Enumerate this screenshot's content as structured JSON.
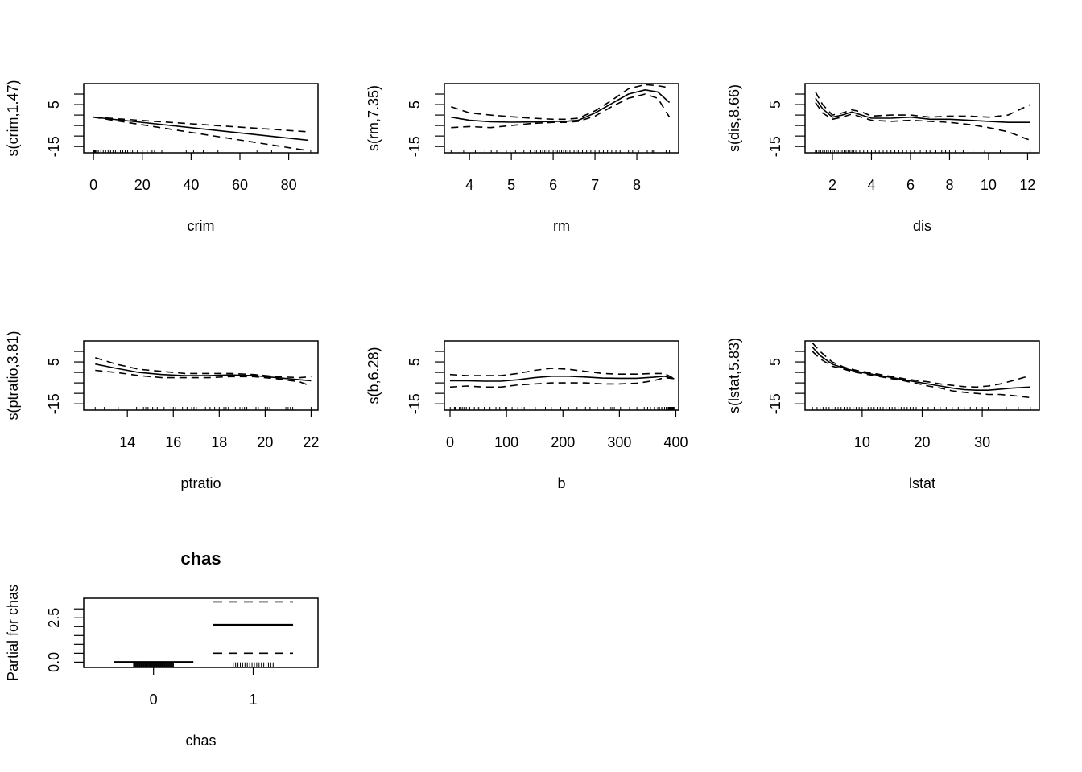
{
  "chart_data": [
    {
      "type": "line",
      "xlabel": "crim",
      "ylabel": "s(crim,1.47)",
      "title": "",
      "xlim": [
        -4,
        92
      ],
      "ylim": [
        -18,
        15
      ],
      "xticks": [
        0,
        20,
        40,
        60,
        80
      ],
      "yticks": [
        -15,
        -10,
        -5,
        0,
        5,
        10
      ],
      "ytick_labels": [
        "-15",
        "",
        "",
        "",
        "5",
        ""
      ],
      "series": [
        {
          "role": "fit",
          "style": "solid",
          "x": [
            0,
            88
          ],
          "y": [
            -1,
            -12
          ]
        },
        {
          "role": "upper",
          "style": "dashed",
          "x": [
            0,
            88
          ],
          "y": [
            -1,
            -8
          ]
        },
        {
          "role": "lower",
          "style": "dashed",
          "x": [
            0,
            88
          ],
          "y": [
            -1,
            -17
          ]
        }
      ],
      "rug": [
        0.01,
        0.03,
        0.05,
        0.08,
        0.1,
        0.15,
        0.2,
        0.3,
        0.5,
        0.8,
        1,
        1.5,
        2,
        3,
        4,
        5,
        6,
        7,
        8,
        9,
        10,
        11,
        12,
        13,
        14,
        15,
        16,
        18,
        20,
        22,
        24,
        25,
        28,
        38,
        41,
        45,
        51,
        67,
        73,
        89
      ]
    },
    {
      "type": "line",
      "xlabel": "rm",
      "ylabel": "s(rm,7.35)",
      "title": "",
      "xlim": [
        3.4,
        9
      ],
      "ylim": [
        -18,
        15
      ],
      "xticks": [
        4,
        5,
        6,
        7,
        8
      ],
      "yticks": [
        -15,
        -10,
        -5,
        0,
        5,
        10
      ],
      "ytick_labels": [
        "-15",
        "",
        "",
        "",
        "5",
        ""
      ],
      "series": [
        {
          "role": "fit",
          "style": "solid",
          "x": [
            3.56,
            4,
            4.5,
            5,
            5.5,
            6,
            6.3,
            6.6,
            7,
            7.4,
            7.8,
            8.2,
            8.5,
            8.78
          ],
          "y": [
            -1,
            -2.5,
            -3.2,
            -3.4,
            -3.3,
            -3,
            -3,
            -2.5,
            1,
            5.5,
            10,
            12,
            11,
            6
          ]
        },
        {
          "role": "upper",
          "style": "dashed",
          "x": [
            3.56,
            4,
            4.5,
            5,
            5.5,
            6,
            6.3,
            6.6,
            7,
            7.4,
            7.8,
            8.2,
            8.5,
            8.78
          ],
          "y": [
            4,
            1,
            0,
            -0.8,
            -1.5,
            -2,
            -2,
            -1.5,
            2,
            7,
            12.5,
            14.5,
            14,
            13
          ]
        },
        {
          "role": "lower",
          "style": "dashed",
          "x": [
            3.56,
            4,
            4.5,
            5,
            5.5,
            6,
            6.3,
            6.6,
            7,
            7.4,
            7.8,
            8.2,
            8.5,
            8.78
          ],
          "y": [
            -6,
            -5.5,
            -6,
            -5,
            -4,
            -3.5,
            -3.5,
            -3,
            -0.5,
            4,
            8,
            10,
            8,
            -1
          ]
        }
      ],
      "rug": [
        3.56,
        3.86,
        4.14,
        4.37,
        4.52,
        4.65,
        4.88,
        4.97,
        5.1,
        5.3,
        5.45,
        5.56,
        5.6,
        5.7,
        5.75,
        5.8,
        5.85,
        5.9,
        5.95,
        6,
        6.05,
        6.1,
        6.15,
        6.2,
        6.25,
        6.3,
        6.35,
        6.4,
        6.45,
        6.5,
        6.55,
        6.6,
        6.7,
        6.8,
        6.9,
        7,
        7.1,
        7.2,
        7.3,
        7.4,
        7.5,
        7.6,
        7.8,
        7.9,
        8.04,
        8.25,
        8.37,
        8.4,
        8.7,
        8.78
      ]
    },
    {
      "type": "line",
      "xlabel": "dis",
      "ylabel": "s(dis,8.66)",
      "title": "",
      "xlim": [
        0.6,
        12.6
      ],
      "ylim": [
        -18,
        15
      ],
      "xticks": [
        2,
        4,
        6,
        8,
        10,
        12
      ],
      "yticks": [
        -15,
        -10,
        -5,
        0,
        5,
        10
      ],
      "ytick_labels": [
        "-15",
        "",
        "",
        "",
        "5",
        ""
      ],
      "series": [
        {
          "role": "fit",
          "style": "solid",
          "x": [
            1.13,
            1.5,
            2,
            2.5,
            3,
            3.5,
            4,
            5,
            6,
            7,
            8,
            9,
            10,
            11,
            12.13
          ],
          "y": [
            8,
            3,
            -1,
            0,
            1.5,
            0,
            -1.5,
            -1.5,
            -1,
            -2,
            -2,
            -2.5,
            -3,
            -3.5,
            -3.5
          ]
        },
        {
          "role": "upper",
          "style": "dashed",
          "x": [
            1.13,
            1.5,
            2,
            2.5,
            3,
            3.5,
            4,
            5,
            6,
            7,
            8,
            9,
            10,
            11,
            12.13
          ],
          "y": [
            11,
            5,
            0,
            1,
            2.5,
            1.5,
            -0.5,
            0,
            0,
            -1,
            -0.5,
            -0.5,
            -1,
            0,
            5
          ]
        },
        {
          "role": "lower",
          "style": "dashed",
          "x": [
            1.13,
            1.5,
            2,
            2.5,
            3,
            3.5,
            4,
            5,
            6,
            7,
            8,
            9,
            10,
            11,
            12.13
          ],
          "y": [
            6,
            1,
            -2,
            -1,
            0.5,
            -1,
            -2.5,
            -3,
            -2.5,
            -3,
            -3.5,
            -4.5,
            -6,
            -8,
            -12
          ]
        }
      ],
      "rug": [
        1.13,
        1.2,
        1.3,
        1.4,
        1.5,
        1.6,
        1.7,
        1.8,
        1.9,
        2,
        2.1,
        2.2,
        2.3,
        2.4,
        2.5,
        2.6,
        2.7,
        2.8,
        2.9,
        3,
        3.1,
        3.2,
        3.4,
        3.6,
        3.8,
        4,
        4.2,
        4.4,
        4.6,
        4.8,
        5,
        5.2,
        5.4,
        5.6,
        5.8,
        6,
        6.2,
        6.5,
        6.8,
        7,
        7.3,
        7.6,
        7.8,
        8,
        8.3,
        8.7,
        9.2,
        9.8,
        10.6,
        12.13
      ]
    },
    {
      "type": "line",
      "xlabel": "ptratio",
      "ylabel": "s(ptratio,3.81)",
      "title": "",
      "xlim": [
        12.1,
        22.3
      ],
      "ylim": [
        -18,
        15
      ],
      "xticks": [
        14,
        16,
        18,
        20,
        22
      ],
      "yticks": [
        -15,
        -10,
        -5,
        0,
        5,
        10
      ],
      "ytick_labels": [
        "-15",
        "",
        "",
        "",
        "5",
        ""
      ],
      "series": [
        {
          "role": "fit",
          "style": "solid",
          "x": [
            12.6,
            13.5,
            14.5,
            15.5,
            16.5,
            17.5,
            18.5,
            19.5,
            20.5,
            21.5,
            22
          ],
          "y": [
            4,
            2,
            0,
            -1,
            -1.5,
            -1.5,
            -1.2,
            -1.5,
            -2.5,
            -3.5,
            -4
          ]
        },
        {
          "role": "upper",
          "style": "dashed",
          "x": [
            12.6,
            13.5,
            14.5,
            15.5,
            16.5,
            17.5,
            18.5,
            19.5,
            20.5,
            21.5,
            22
          ],
          "y": [
            7,
            4,
            1.5,
            0.5,
            -0.5,
            -0.5,
            -0.5,
            -1,
            -2,
            -2.5,
            -2
          ]
        },
        {
          "role": "lower",
          "style": "dashed",
          "x": [
            12.6,
            13.5,
            14.5,
            15.5,
            16.5,
            17.5,
            18.5,
            19.5,
            20.5,
            21.5,
            22
          ],
          "y": [
            1,
            0,
            -1.5,
            -2.5,
            -2.5,
            -2.5,
            -2,
            -2,
            -3,
            -4.5,
            -6.5
          ]
        }
      ],
      "rug": [
        12.6,
        13,
        13.6,
        14.4,
        14.7,
        14.8,
        14.9,
        15.1,
        15.2,
        15.3,
        15.6,
        15.9,
        16,
        16.1,
        16.4,
        16.6,
        16.8,
        16.9,
        17,
        17.4,
        17.6,
        17.8,
        17.9,
        18,
        18.2,
        18.3,
        18.4,
        18.6,
        18.7,
        18.9,
        19,
        19.1,
        19.2,
        19.6,
        19.7,
        20,
        20.1,
        20.2,
        20.9,
        21,
        21.1,
        21.2,
        22
      ]
    },
    {
      "type": "line",
      "xlabel": "b",
      "ylabel": "s(b,6.28)",
      "title": "",
      "xlim": [
        -10,
        405
      ],
      "ylim": [
        -18,
        15
      ],
      "xticks": [
        0,
        100,
        200,
        300,
        400
      ],
      "yticks": [
        -15,
        -10,
        -5,
        0,
        5,
        10
      ],
      "ytick_labels": [
        "-15",
        "",
        "",
        "",
        "5",
        ""
      ],
      "series": [
        {
          "role": "fit",
          "style": "solid",
          "x": [
            0,
            30,
            60,
            90,
            120,
            150,
            180,
            210,
            240,
            270,
            300,
            330,
            360,
            380,
            397
          ],
          "y": [
            -4,
            -4,
            -4.2,
            -4.2,
            -3.5,
            -2.5,
            -1.8,
            -1.8,
            -2.2,
            -2.7,
            -2.8,
            -2.8,
            -2.3,
            -1.8,
            -3
          ]
        },
        {
          "role": "upper",
          "style": "dashed",
          "x": [
            0,
            30,
            60,
            90,
            120,
            150,
            180,
            210,
            240,
            270,
            300,
            330,
            360,
            380,
            397
          ],
          "y": [
            -1,
            -1.5,
            -1.5,
            -1.5,
            -0.5,
            1,
            2,
            1.5,
            0.5,
            -0.5,
            -0.8,
            -0.8,
            -0.5,
            -0.5,
            -3
          ]
        },
        {
          "role": "lower",
          "style": "dashed",
          "x": [
            0,
            30,
            60,
            90,
            120,
            150,
            180,
            210,
            240,
            270,
            300,
            330,
            360,
            380,
            397
          ],
          "y": [
            -7,
            -6.5,
            -7,
            -7,
            -6,
            -5.5,
            -5,
            -5,
            -5,
            -5.5,
            -5.5,
            -5.2,
            -4,
            -2.5,
            -3
          ]
        }
      ],
      "rug": [
        0.3,
        3.5,
        7.7,
        9.3,
        16.5,
        18.8,
        21.6,
        24.6,
        28.8,
        35,
        43,
        48,
        50.9,
        60.7,
        70.8,
        81.3,
        88,
        97.9,
        100.2,
        109.9,
        120,
        127.4,
        131.4,
        151,
        169,
        179.4,
        196,
        210,
        225,
        240,
        248,
        261,
        272,
        285,
        288,
        291,
        302,
        318,
        331,
        344,
        350,
        355,
        362,
        368,
        371,
        375,
        377,
        380,
        383,
        385,
        387,
        388,
        389,
        390,
        391,
        392,
        393,
        394,
        395,
        396,
        396.9
      ]
    },
    {
      "type": "line",
      "xlabel": "lstat",
      "ylabel": "s(lstat,5.83)",
      "title": "",
      "xlim": [
        0.5,
        39.5
      ],
      "ylim": [
        -18,
        15
      ],
      "xticks": [
        10,
        20,
        30
      ],
      "yticks": [
        -15,
        -10,
        -5,
        0,
        5,
        10
      ],
      "ytick_labels": [
        "-15",
        "",
        "",
        "",
        "5",
        ""
      ],
      "series": [
        {
          "role": "fit",
          "style": "solid",
          "x": [
            1.73,
            3,
            5,
            7,
            9,
            11,
            13,
            15,
            17,
            19,
            21,
            23,
            25,
            27,
            29,
            31,
            33,
            35,
            37.97
          ],
          "y": [
            12,
            8,
            4,
            2,
            0.5,
            -0.5,
            -1.5,
            -2.5,
            -3.5,
            -4.5,
            -5.5,
            -6.5,
            -7.5,
            -8.2,
            -8.5,
            -8.5,
            -8,
            -7.5,
            -7
          ]
        },
        {
          "role": "upper",
          "style": "dashed",
          "x": [
            1.73,
            3,
            5,
            7,
            9,
            11,
            13,
            15,
            17,
            19,
            21,
            23,
            25,
            27,
            29,
            31,
            33,
            35,
            37.97
          ],
          "y": [
            14,
            10,
            5,
            2.5,
            1,
            0,
            -1,
            -2,
            -3,
            -3.8,
            -4.5,
            -5.5,
            -6.2,
            -6.8,
            -7,
            -6.5,
            -5.5,
            -4,
            -1.5
          ]
        },
        {
          "role": "lower",
          "style": "dashed",
          "x": [
            1.73,
            3,
            5,
            7,
            9,
            11,
            13,
            15,
            17,
            19,
            21,
            23,
            25,
            27,
            29,
            31,
            33,
            35,
            37.97
          ],
          "y": [
            10,
            6.5,
            3,
            1.5,
            0,
            -1,
            -2,
            -3,
            -4,
            -5.2,
            -6.5,
            -7.5,
            -8.8,
            -9.5,
            -10,
            -10.5,
            -10.5,
            -11,
            -12
          ]
        }
      ],
      "rug": [
        1.73,
        2.5,
        3,
        3.5,
        4,
        4.5,
        5,
        5.5,
        6,
        6.5,
        7,
        7.5,
        8,
        8.5,
        9,
        9.5,
        10,
        10.5,
        11,
        11.5,
        12,
        12.5,
        13,
        13.5,
        14,
        14.5,
        15,
        15.5,
        16,
        16.5,
        17,
        17.5,
        18,
        18.5,
        19,
        20,
        21,
        22,
        23,
        24,
        25,
        26,
        27,
        28,
        29,
        30,
        31,
        34,
        36,
        38
      ]
    },
    {
      "type": "line",
      "title": "chas",
      "xlabel": "chas",
      "ylabel": "Partial for chas",
      "xlim": [
        -0.7,
        1.65
      ],
      "ylim": [
        -0.3,
        3.6
      ],
      "xticks": [
        0,
        1
      ],
      "yticks": [
        0,
        0.5,
        1,
        1.5,
        2,
        2.5,
        3
      ],
      "ytick_labels": [
        "0.0",
        "",
        "",
        "",
        "",
        "2.5",
        ""
      ],
      "levels": [
        {
          "level": "0",
          "x": [
            -0.4,
            0.4
          ],
          "fit": 0,
          "upper": 0,
          "lower": 0
        },
        {
          "level": "1",
          "x": [
            0.6,
            1.4
          ],
          "fit": 2.1,
          "upper": 3.4,
          "lower": 0.5
        }
      ],
      "jitter": [
        {
          "level": "0",
          "x_range": [
            -0.2,
            0.2
          ],
          "y": -0.15
        },
        {
          "level": "1",
          "x_range": [
            -0.2,
            0.2
          ],
          "y": -0.15
        }
      ]
    }
  ]
}
